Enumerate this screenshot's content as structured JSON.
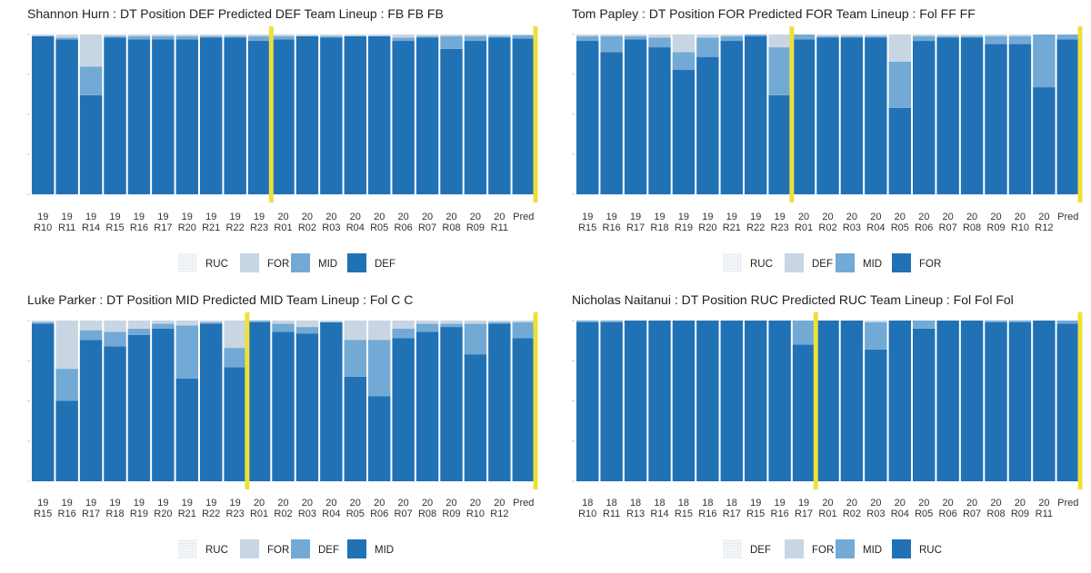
{
  "colors": {
    "dotted": "#dbe4ee",
    "light": "#c8d6e3",
    "medium": "#72aad5",
    "dark": "#2171b5",
    "yellow": "#ede03a",
    "sep": "#ffffff"
  },
  "chart_data": [
    {
      "type": "bar",
      "stacked": true,
      "title": "Shannon Hurn : DT Position DEF   Predicted DEF   Team Lineup : FB FB FB",
      "categories": [
        {
          "top": "19",
          "bottom": "R10"
        },
        {
          "top": "19",
          "bottom": "R11"
        },
        {
          "top": "19",
          "bottom": "R14"
        },
        {
          "top": "19",
          "bottom": "R15"
        },
        {
          "top": "19",
          "bottom": "R16"
        },
        {
          "top": "19",
          "bottom": "R17"
        },
        {
          "top": "19",
          "bottom": "R20"
        },
        {
          "top": "19",
          "bottom": "R21"
        },
        {
          "top": "19",
          "bottom": "R22"
        },
        {
          "top": "19",
          "bottom": "R23"
        },
        {
          "top": "20",
          "bottom": "R01"
        },
        {
          "top": "20",
          "bottom": "R02"
        },
        {
          "top": "20",
          "bottom": "R03"
        },
        {
          "top": "20",
          "bottom": "R04"
        },
        {
          "top": "20",
          "bottom": "R05"
        },
        {
          "top": "20",
          "bottom": "R06"
        },
        {
          "top": "20",
          "bottom": "R07"
        },
        {
          "top": "20",
          "bottom": "R08"
        },
        {
          "top": "20",
          "bottom": "R09"
        },
        {
          "top": "20",
          "bottom": "R11"
        },
        {
          "top": "",
          "bottom": "Pred"
        }
      ],
      "series": [
        {
          "name": "RUC",
          "style": "dotted",
          "values": [
            0,
            0,
            0,
            0,
            0,
            0,
            0,
            0,
            0,
            0,
            0,
            0,
            0,
            0,
            0,
            0,
            0,
            0,
            0,
            0,
            0
          ]
        },
        {
          "name": "FOR",
          "style": "light",
          "values": [
            1,
            2,
            20,
            1,
            1,
            1,
            1,
            1,
            1,
            1,
            1,
            1,
            1,
            1,
            1,
            2,
            1,
            1,
            1,
            1,
            0.5
          ]
        },
        {
          "name": "MID",
          "style": "medium",
          "values": [
            0,
            1,
            18,
            1,
            2,
            2,
            2,
            1,
            1,
            3,
            2,
            0,
            1,
            0,
            0,
            2,
            1,
            8,
            3,
            1,
            2
          ]
        },
        {
          "name": "DEF",
          "style": "dark",
          "values": [
            99,
            97,
            62,
            98,
            97,
            97,
            97,
            98,
            98,
            96,
            97,
            99,
            98,
            99,
            99,
            96,
            98,
            91,
            96,
            98,
            97.5
          ]
        }
      ],
      "ylim": [
        0,
        100
      ],
      "legend": {
        "position": "bottom",
        "entries": [
          "RUC",
          "FOR",
          "MID",
          "DEF"
        ]
      },
      "highlight_after_index": [
        9,
        20
      ]
    },
    {
      "type": "bar",
      "stacked": true,
      "title": "Tom Papley : DT Position FOR   Predicted FOR   Team Lineup : Fol FF FF",
      "categories": [
        {
          "top": "19",
          "bottom": "R15"
        },
        {
          "top": "19",
          "bottom": "R16"
        },
        {
          "top": "19",
          "bottom": "R17"
        },
        {
          "top": "19",
          "bottom": "R18"
        },
        {
          "top": "19",
          "bottom": "R19"
        },
        {
          "top": "19",
          "bottom": "R20"
        },
        {
          "top": "19",
          "bottom": "R21"
        },
        {
          "top": "19",
          "bottom": "R22"
        },
        {
          "top": "19",
          "bottom": "R23"
        },
        {
          "top": "20",
          "bottom": "R01"
        },
        {
          "top": "20",
          "bottom": "R02"
        },
        {
          "top": "20",
          "bottom": "R03"
        },
        {
          "top": "20",
          "bottom": "R04"
        },
        {
          "top": "20",
          "bottom": "R05"
        },
        {
          "top": "20",
          "bottom": "R06"
        },
        {
          "top": "20",
          "bottom": "R07"
        },
        {
          "top": "20",
          "bottom": "R08"
        },
        {
          "top": "20",
          "bottom": "R09"
        },
        {
          "top": "20",
          "bottom": "R10"
        },
        {
          "top": "20",
          "bottom": "R12"
        },
        {
          "top": "",
          "bottom": "Pred"
        }
      ],
      "series": [
        {
          "name": "RUC",
          "style": "dotted",
          "values": [
            0,
            0,
            0,
            0,
            0,
            0,
            0,
            0,
            0,
            0,
            0,
            0,
            0,
            0,
            0,
            0,
            0,
            0,
            0,
            0,
            0
          ]
        },
        {
          "name": "DEF",
          "style": "light",
          "values": [
            1,
            1,
            1,
            2,
            11,
            2,
            1,
            0,
            8,
            0,
            1,
            1,
            1,
            17,
            1,
            1,
            1,
            1,
            1,
            0,
            0
          ]
        },
        {
          "name": "MID",
          "style": "medium",
          "values": [
            3,
            10,
            2,
            6,
            11,
            12,
            3,
            1,
            30,
            3,
            1,
            1,
            1,
            29,
            3,
            1,
            1,
            5,
            5,
            33,
            3
          ]
        },
        {
          "name": "FOR",
          "style": "dark",
          "values": [
            96,
            89,
            97,
            92,
            78,
            86,
            96,
            99,
            62,
            97,
            98,
            98,
            98,
            54,
            96,
            98,
            98,
            94,
            94,
            67,
            97
          ]
        }
      ],
      "ylim": [
        0,
        100
      ],
      "legend": {
        "position": "bottom",
        "entries": [
          "RUC",
          "DEF",
          "MID",
          "FOR"
        ]
      },
      "highlight_after_index": [
        8,
        20
      ]
    },
    {
      "type": "bar",
      "stacked": true,
      "title": "Luke Parker : DT Position MID   Predicted MID   Team Lineup : Fol C C",
      "categories": [
        {
          "top": "19",
          "bottom": "R15"
        },
        {
          "top": "19",
          "bottom": "R16"
        },
        {
          "top": "19",
          "bottom": "R17"
        },
        {
          "top": "19",
          "bottom": "R18"
        },
        {
          "top": "19",
          "bottom": "R19"
        },
        {
          "top": "19",
          "bottom": "R20"
        },
        {
          "top": "19",
          "bottom": "R21"
        },
        {
          "top": "19",
          "bottom": "R22"
        },
        {
          "top": "19",
          "bottom": "R23"
        },
        {
          "top": "20",
          "bottom": "R01"
        },
        {
          "top": "20",
          "bottom": "R02"
        },
        {
          "top": "20",
          "bottom": "R03"
        },
        {
          "top": "20",
          "bottom": "R04"
        },
        {
          "top": "20",
          "bottom": "R05"
        },
        {
          "top": "20",
          "bottom": "R06"
        },
        {
          "top": "20",
          "bottom": "R07"
        },
        {
          "top": "20",
          "bottom": "R08"
        },
        {
          "top": "20",
          "bottom": "R09"
        },
        {
          "top": "20",
          "bottom": "R10"
        },
        {
          "top": "20",
          "bottom": "R12"
        },
        {
          "top": "",
          "bottom": "Pred"
        }
      ],
      "series": [
        {
          "name": "RUC",
          "style": "dotted",
          "values": [
            0,
            0,
            0,
            0,
            0,
            0,
            0,
            0,
            0,
            0,
            0,
            0,
            0,
            0,
            0,
            0,
            0,
            0,
            0,
            0,
            0
          ]
        },
        {
          "name": "FOR",
          "style": "light",
          "values": [
            1,
            30,
            6,
            7,
            5,
            2,
            3,
            1,
            17,
            0,
            2,
            4,
            1,
            12,
            12,
            5,
            2,
            2,
            2,
            1,
            1
          ]
        },
        {
          "name": "DEF",
          "style": "medium",
          "values": [
            1,
            20,
            6,
            9,
            4,
            3,
            33,
            1,
            12,
            1,
            5,
            4,
            0,
            23,
            35,
            6,
            5,
            2,
            19,
            1,
            10
          ]
        },
        {
          "name": "MID",
          "style": "dark",
          "values": [
            98,
            50,
            88,
            84,
            91,
            95,
            64,
            98,
            71,
            99,
            93,
            92,
            99,
            65,
            53,
            89,
            93,
            96,
            79,
            98,
            89
          ]
        }
      ],
      "ylim": [
        0,
        100
      ],
      "legend": {
        "position": "bottom",
        "entries": [
          "RUC",
          "FOR",
          "DEF",
          "MID"
        ]
      },
      "highlight_after_index": [
        8,
        20
      ]
    },
    {
      "type": "bar",
      "stacked": true,
      "title": "Nicholas Naitanui : DT Position RUC   Predicted RUC   Team Lineup : Fol Fol Fol",
      "categories": [
        {
          "top": "18",
          "bottom": "R10"
        },
        {
          "top": "18",
          "bottom": "R11"
        },
        {
          "top": "18",
          "bottom": "R13"
        },
        {
          "top": "18",
          "bottom": "R14"
        },
        {
          "top": "18",
          "bottom": "R15"
        },
        {
          "top": "18",
          "bottom": "R16"
        },
        {
          "top": "18",
          "bottom": "R17"
        },
        {
          "top": "19",
          "bottom": "R15"
        },
        {
          "top": "19",
          "bottom": "R16"
        },
        {
          "top": "19",
          "bottom": "R17"
        },
        {
          "top": "20",
          "bottom": "R01"
        },
        {
          "top": "20",
          "bottom": "R02"
        },
        {
          "top": "20",
          "bottom": "R03"
        },
        {
          "top": "20",
          "bottom": "R04"
        },
        {
          "top": "20",
          "bottom": "R05"
        },
        {
          "top": "20",
          "bottom": "R06"
        },
        {
          "top": "20",
          "bottom": "R07"
        },
        {
          "top": "20",
          "bottom": "R08"
        },
        {
          "top": "20",
          "bottom": "R09"
        },
        {
          "top": "20",
          "bottom": "R11"
        },
        {
          "top": "",
          "bottom": "Pred"
        }
      ],
      "series": [
        {
          "name": "DEF",
          "style": "dotted",
          "values": [
            0,
            0,
            0,
            0,
            0,
            0,
            0,
            0,
            0,
            0,
            0,
            0,
            0,
            0,
            0,
            0,
            0,
            0,
            0,
            0,
            0
          ]
        },
        {
          "name": "FOR",
          "style": "light",
          "values": [
            0,
            0,
            0,
            0,
            0,
            0,
            0,
            0,
            0,
            0,
            0,
            0,
            1,
            0,
            0,
            0,
            0,
            0,
            0,
            0,
            0
          ]
        },
        {
          "name": "MID",
          "style": "medium",
          "values": [
            1,
            1,
            0,
            0,
            0,
            0,
            0,
            0,
            0,
            15,
            0,
            0,
            17,
            0,
            5,
            0,
            0,
            1,
            1,
            0,
            2
          ]
        },
        {
          "name": "RUC",
          "style": "dark",
          "values": [
            99,
            99,
            100,
            100,
            100,
            100,
            100,
            100,
            100,
            85,
            100,
            100,
            82,
            100,
            95,
            100,
            100,
            99,
            99,
            100,
            98
          ]
        }
      ],
      "ylim": [
        0,
        100
      ],
      "legend": {
        "position": "bottom",
        "entries": [
          "DEF",
          "FOR",
          "MID",
          "RUC"
        ]
      },
      "highlight_after_index": [
        9,
        20
      ]
    }
  ]
}
